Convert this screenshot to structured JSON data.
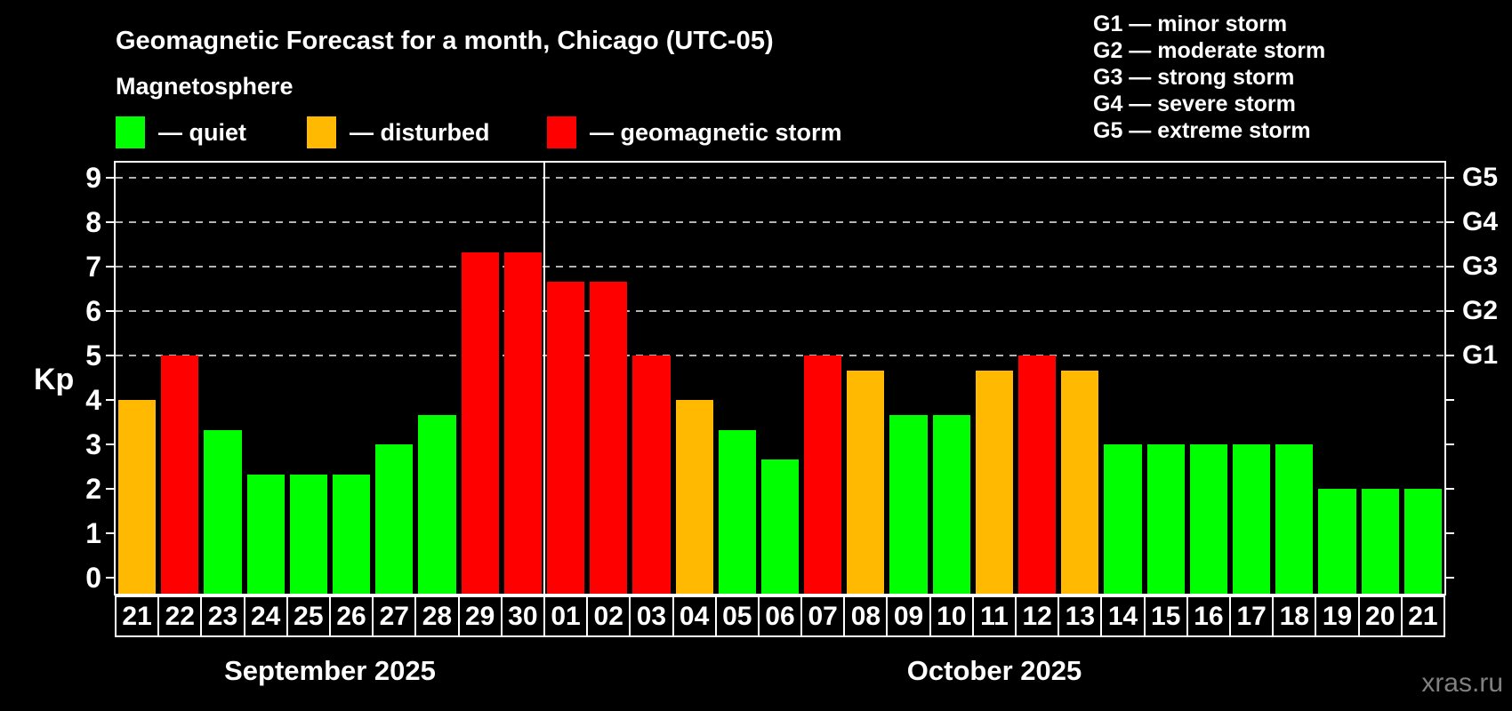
{
  "title": "Geomagnetic Forecast for a month, Chicago (UTC-05)",
  "subtitle": "Magnetosphere",
  "legend": {
    "items": [
      {
        "status": "quiet",
        "label": "— quiet"
      },
      {
        "status": "disturbed",
        "label": "— disturbed"
      },
      {
        "status": "storm",
        "label": "— geomagnetic storm"
      }
    ]
  },
  "status_colors": {
    "quiet": "#00FF00",
    "disturbed": "#FFB900",
    "storm": "#FF0000"
  },
  "g_scale_legend": {
    "lines": [
      "G1 — minor storm",
      "G2 — moderate storm",
      "G3 — strong storm",
      "G4 — severe storm",
      "G5 — extreme storm"
    ]
  },
  "watermark": "xras.ru",
  "chart_data": {
    "type": "bar",
    "title": "Geomagnetic Forecast for a month, Chicago (UTC-05)",
    "ylabel": "Kp",
    "ylim": [
      0,
      9
    ],
    "yticks": [
      0,
      1,
      2,
      3,
      4,
      5,
      6,
      7,
      8,
      9
    ],
    "gridlines_at_kp": [
      5,
      6,
      7,
      8,
      9
    ],
    "grid": "dashed horizontal at storm levels only",
    "legend_position": "top",
    "right_axis": [
      {
        "kp": 5,
        "label": "G1"
      },
      {
        "kp": 6,
        "label": "G2"
      },
      {
        "kp": 7,
        "label": "G3"
      },
      {
        "kp": 8,
        "label": "G4"
      },
      {
        "kp": 9,
        "label": "G5"
      }
    ],
    "months": [
      {
        "label": "September 2025",
        "first_bar_index": 0,
        "num_days": 10
      },
      {
        "label": "October 2025",
        "first_bar_index": 10,
        "num_days": 21
      }
    ],
    "bars": [
      {
        "month": "September 2025",
        "day": "21",
        "kp": 4.0,
        "status": "disturbed"
      },
      {
        "month": "September 2025",
        "day": "22",
        "kp": 5.0,
        "status": "storm"
      },
      {
        "month": "September 2025",
        "day": "23",
        "kp": 3.33,
        "status": "quiet"
      },
      {
        "month": "September 2025",
        "day": "24",
        "kp": 2.33,
        "status": "quiet"
      },
      {
        "month": "September 2025",
        "day": "25",
        "kp": 2.33,
        "status": "quiet"
      },
      {
        "month": "September 2025",
        "day": "26",
        "kp": 2.33,
        "status": "quiet"
      },
      {
        "month": "September 2025",
        "day": "27",
        "kp": 3.0,
        "status": "quiet"
      },
      {
        "month": "September 2025",
        "day": "28",
        "kp": 3.67,
        "status": "quiet"
      },
      {
        "month": "September 2025",
        "day": "29",
        "kp": 7.33,
        "status": "storm"
      },
      {
        "month": "September 2025",
        "day": "30",
        "kp": 7.33,
        "status": "storm"
      },
      {
        "month": "October 2025",
        "day": "01",
        "kp": 6.67,
        "status": "storm"
      },
      {
        "month": "October 2025",
        "day": "02",
        "kp": 6.67,
        "status": "storm"
      },
      {
        "month": "October 2025",
        "day": "03",
        "kp": 5.0,
        "status": "storm"
      },
      {
        "month": "October 2025",
        "day": "04",
        "kp": 4.0,
        "status": "disturbed"
      },
      {
        "month": "October 2025",
        "day": "05",
        "kp": 3.33,
        "status": "quiet"
      },
      {
        "month": "October 2025",
        "day": "06",
        "kp": 2.67,
        "status": "quiet"
      },
      {
        "month": "October 2025",
        "day": "07",
        "kp": 5.0,
        "status": "storm"
      },
      {
        "month": "October 2025",
        "day": "08",
        "kp": 4.67,
        "status": "disturbed"
      },
      {
        "month": "October 2025",
        "day": "09",
        "kp": 3.67,
        "status": "quiet"
      },
      {
        "month": "October 2025",
        "day": "10",
        "kp": 3.67,
        "status": "quiet"
      },
      {
        "month": "October 2025",
        "day": "11",
        "kp": 4.67,
        "status": "disturbed"
      },
      {
        "month": "October 2025",
        "day": "12",
        "kp": 5.0,
        "status": "storm"
      },
      {
        "month": "October 2025",
        "day": "13",
        "kp": 4.67,
        "status": "disturbed"
      },
      {
        "month": "October 2025",
        "day": "14",
        "kp": 3.0,
        "status": "quiet"
      },
      {
        "month": "October 2025",
        "day": "15",
        "kp": 3.0,
        "status": "quiet"
      },
      {
        "month": "October 2025",
        "day": "16",
        "kp": 3.0,
        "status": "quiet"
      },
      {
        "month": "October 2025",
        "day": "17",
        "kp": 3.0,
        "status": "quiet"
      },
      {
        "month": "October 2025",
        "day": "18",
        "kp": 3.0,
        "status": "quiet"
      },
      {
        "month": "October 2025",
        "day": "19",
        "kp": 2.0,
        "status": "quiet"
      },
      {
        "month": "October 2025",
        "day": "20",
        "kp": 2.0,
        "status": "quiet"
      },
      {
        "month": "October 2025",
        "day": "21",
        "kp": 2.0,
        "status": "quiet"
      }
    ]
  }
}
